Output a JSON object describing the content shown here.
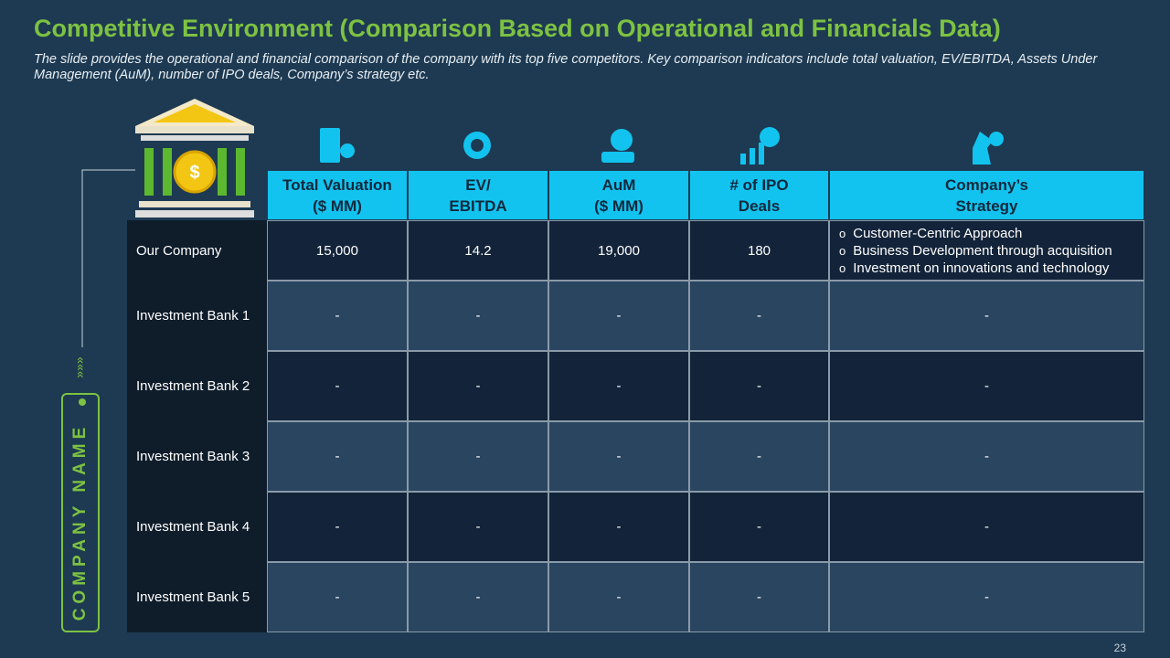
{
  "header": {
    "title": "Competitive Environment (Comparison Based on Operational and Financials Data)",
    "subtitle": "The slide provides the operational and financial comparison of the company with  its top five competitors. Key comparison indicators include total valuation, EV/EBITDA, Assets Under Management (AuM), number of IPO deals, Company’s strategy etc."
  },
  "table": {
    "columns": [
      "Total Valuation\n($ MM)",
      "EV/\nEBITDA",
      "AuM\n($ MM)",
      "# of IPO\nDeals",
      "Company’s\nStrategy"
    ],
    "rows": [
      {
        "label": "Our Company",
        "cells": [
          "15,000",
          "14.2",
          "19,000",
          "180",
          [
            "Customer-Centric Approach",
            "Business Development through  acquisition",
            "Investment  on innovations and technology"
          ]
        ]
      },
      {
        "label": "Investment  Bank 1",
        "cells": [
          "-",
          "-",
          "-",
          "-",
          "-"
        ]
      },
      {
        "label": "Investment  Bank 2",
        "cells": [
          "-",
          "-",
          "-",
          "-",
          "-"
        ]
      },
      {
        "label": "Investment  Bank 3",
        "cells": [
          "-",
          "-",
          "-",
          "-",
          "-"
        ]
      },
      {
        "label": "Investment  Bank 4",
        "cells": [
          "-",
          "-",
          "-",
          "-",
          "-"
        ]
      },
      {
        "label": "Investment  Bank 5",
        "cells": [
          "-",
          "-",
          "-",
          "-",
          "-"
        ]
      }
    ]
  },
  "side_label": "COMPANY NAME",
  "page_number": "23"
}
